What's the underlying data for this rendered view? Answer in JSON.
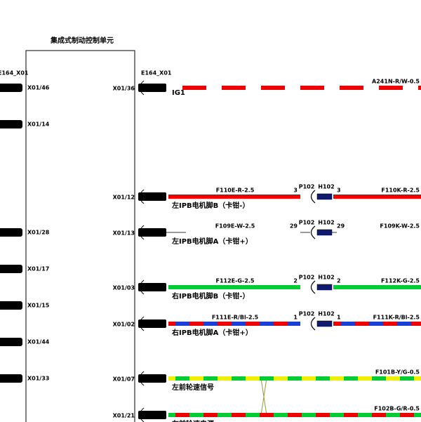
{
  "module": {
    "title": "集成式制动控制单元",
    "left_connector": "E164_X01",
    "right_connector": "E164_X01"
  },
  "left_pins": [
    "X01/46",
    "X01/14",
    "X01/28",
    "X01/17",
    "X01/15",
    "X01/44",
    "X01/33"
  ],
  "circuits": [
    {
      "pin": "X01/36",
      "label": "IG1",
      "wire_out": "A241N-R/W-0.5"
    },
    {
      "pin": "X01/12",
      "wire_in": "F110E-R-2.5",
      "pin_p": "3",
      "connector_p": "P102",
      "connector_h": "H102",
      "pin_h": "3",
      "wire_out": "F110K-R-2.5",
      "label": "左IPB电机脚B（卡钳-）"
    },
    {
      "pin": "X01/13",
      "wire_in": "F109E-W-2.5",
      "pin_p": "29",
      "connector_p": "P102",
      "connector_h": "H102",
      "pin_h": "29",
      "wire_out": "F109K-W-2.5",
      "label": "左IPB电机脚A（卡钳+）"
    },
    {
      "pin": "X01/03",
      "wire_in": "F112E-G-2.5",
      "pin_p": "2",
      "connector_p": "P102",
      "connector_h": "H102",
      "pin_h": "2",
      "wire_out": "F112K-G-2.5",
      "label": "右IPB电机脚B（卡钳-）"
    },
    {
      "pin": "X01/02",
      "wire_in": "F111E-R/Bl-2.5",
      "pin_p": "1",
      "connector_p": "P102",
      "connector_h": "H102",
      "pin_h": "1",
      "wire_out": "F111K-R/Bl-2.5",
      "label": "右IPB电机脚A（卡钳+）"
    },
    {
      "pin": "X01/07",
      "wire_out": "F101B-Y/G-0.5",
      "label": "左前轮速信号"
    },
    {
      "pin": "X01/21",
      "wire_out": "F102B-G/R-0.5",
      "label": "左前轮速电源"
    }
  ]
}
